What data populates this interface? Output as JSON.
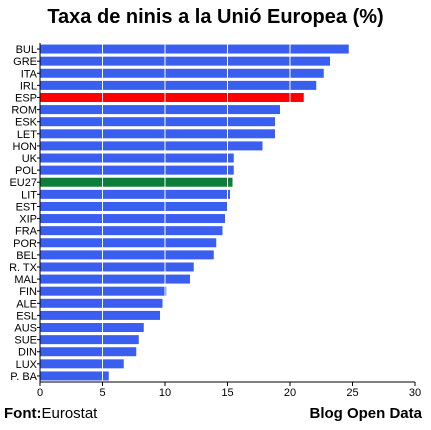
{
  "chart_data": {
    "type": "bar",
    "orientation": "horizontal",
    "title": "Taxa de ninis a la Unió Europea (%)",
    "xlabel": "",
    "ylabel": "",
    "xlim": [
      0,
      30
    ],
    "xticks": [
      0,
      5,
      10,
      15,
      20,
      25,
      30
    ],
    "grid": true,
    "categories": [
      "BUL",
      "GRE",
      "ITA",
      "IRL",
      "ESP",
      "ROM",
      "ESK",
      "LET",
      "HON",
      "UK",
      "POL",
      "EU27",
      "LIT",
      "EST",
      "XIP",
      "FRA",
      "POR",
      "BEL",
      "R. TX",
      "MAL",
      "FIN",
      "ALE",
      "ESL",
      "AUS",
      "SUE",
      "DIN",
      "LUX",
      "P. BA"
    ],
    "values": [
      24.7,
      23.2,
      22.7,
      22.1,
      21.1,
      19.2,
      18.8,
      18.8,
      17.8,
      15.5,
      15.5,
      15.4,
      15.2,
      15.0,
      14.8,
      14.6,
      14.1,
      13.9,
      12.3,
      12.0,
      10.1,
      9.8,
      9.6,
      8.3,
      7.9,
      7.7,
      6.7,
      5.5
    ],
    "colors": {
      "default": "#3a5ef0",
      "ESP": "#ff0000",
      "EU27": "#0f7d3a"
    }
  },
  "footer": {
    "source_label": "Font:",
    "source_value": "Eurostat",
    "credit": "Blog Open Data"
  }
}
